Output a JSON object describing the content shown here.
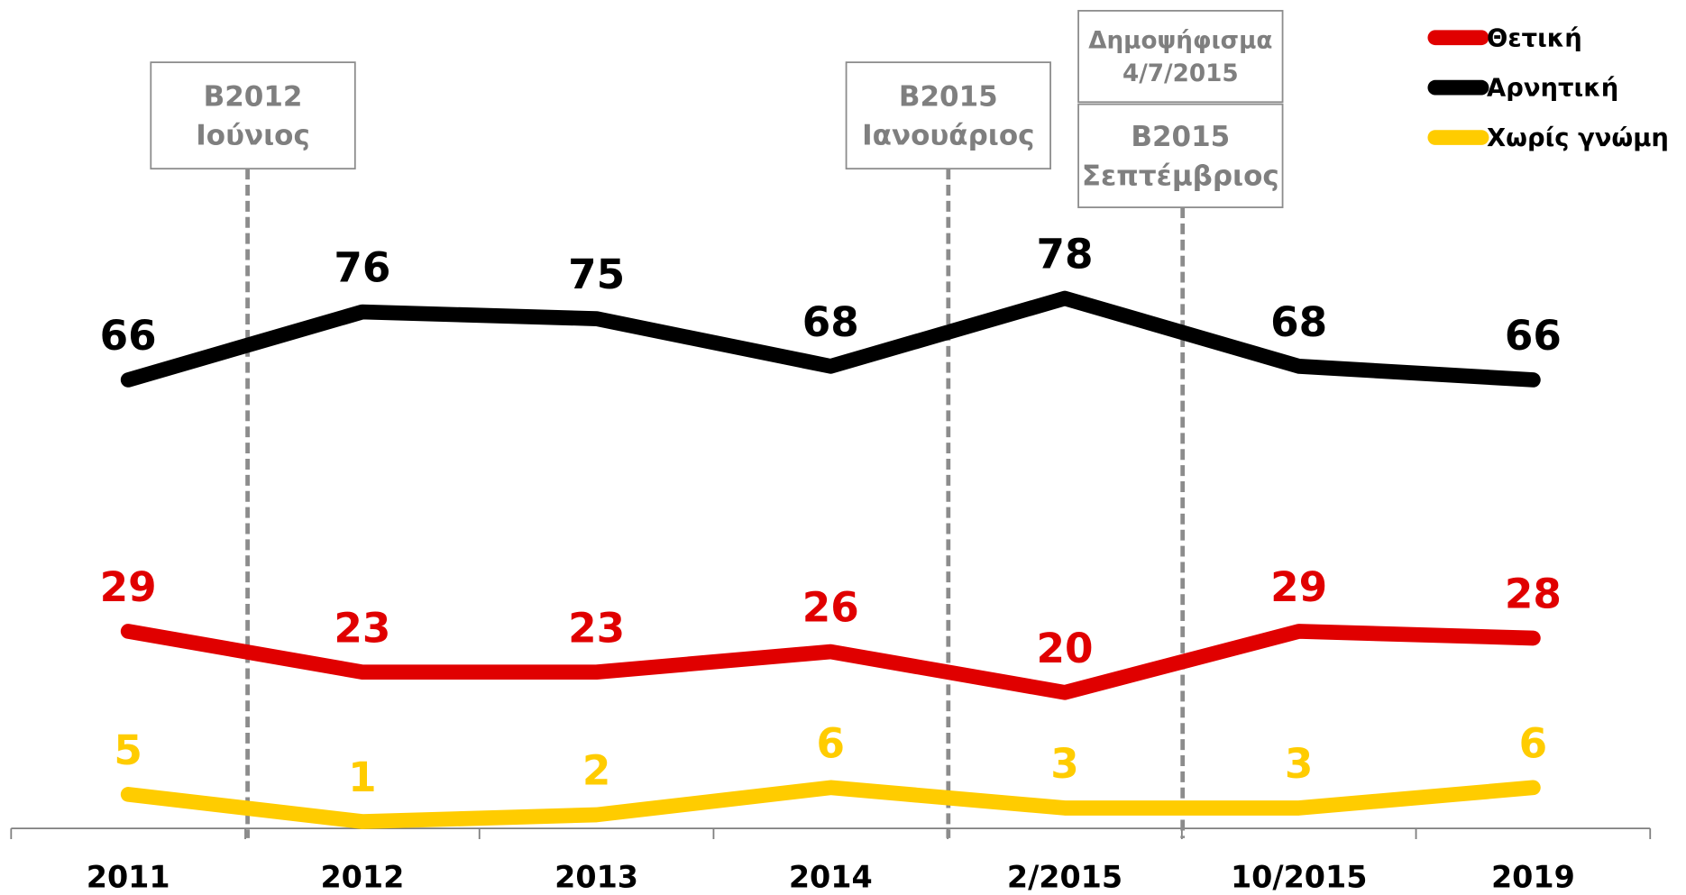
{
  "chart_data": {
    "type": "line",
    "categories": [
      "2011",
      "2012",
      "2013",
      "2014",
      "2/2015",
      "10/2015",
      "2019"
    ],
    "series": [
      {
        "name": "Θετική",
        "color": "#e00000",
        "values": [
          29,
          23,
          23,
          26,
          20,
          29,
          28
        ]
      },
      {
        "name": "Αρνητική",
        "color": "#000000",
        "values": [
          66,
          76,
          75,
          68,
          78,
          68,
          66
        ]
      },
      {
        "name": "Χωρίς γνώμη",
        "color": "#ffcc00",
        "values": [
          5,
          1,
          2,
          6,
          3,
          3,
          6
        ]
      }
    ],
    "ylim": [
      0,
      100
    ],
    "legend": "top-right",
    "annotations": [
      {
        "lines": [
          "B2012",
          "Ιούνιος"
        ]
      },
      {
        "lines": [
          "B2015",
          "Ιανουάριος"
        ]
      },
      {
        "lines": [
          "Δημοψήφισμα",
          "4/7/2015"
        ]
      },
      {
        "lines": [
          "B2015",
          "Σεπτέμβριος"
        ]
      }
    ]
  }
}
